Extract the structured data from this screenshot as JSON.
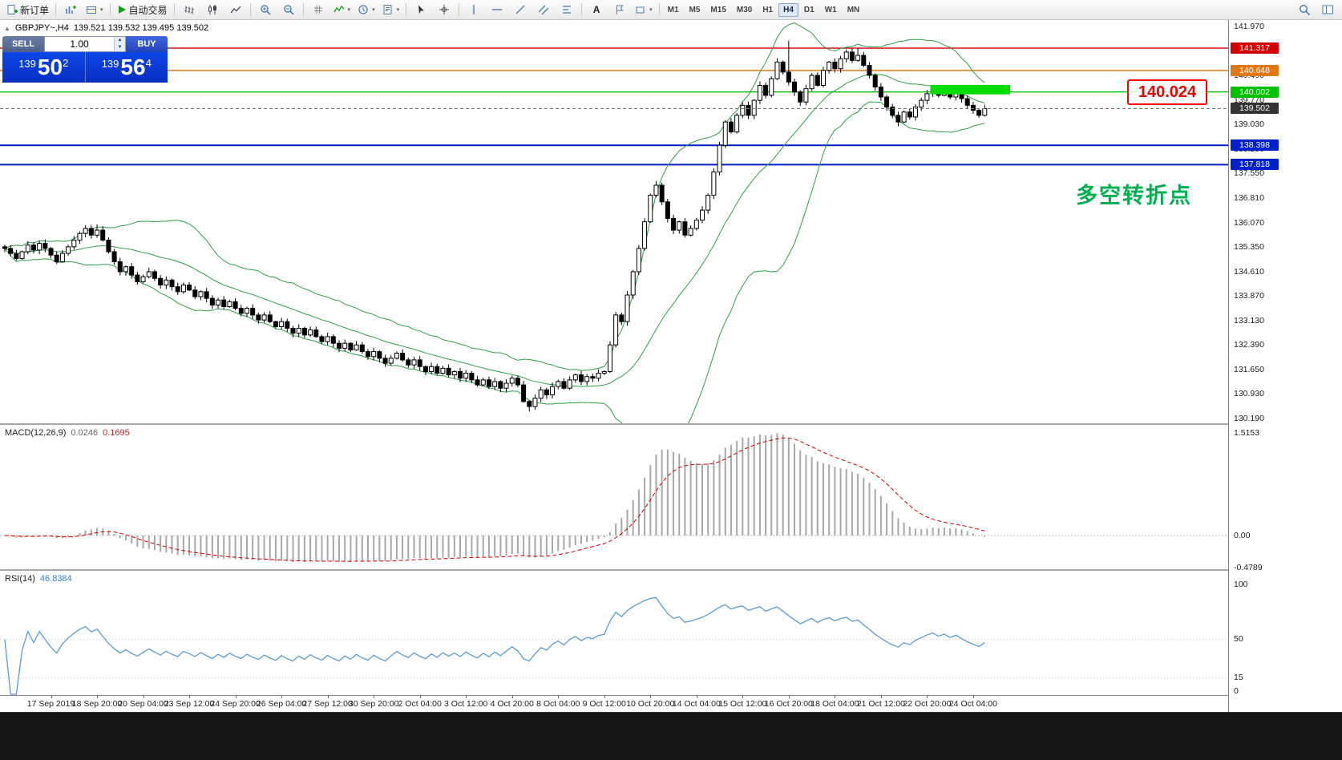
{
  "toolbar": {
    "new_order_label": "新订单",
    "autotrading_label": "自动交易",
    "text_tool_label": "A",
    "timeframes": [
      "M1",
      "M5",
      "M15",
      "M30",
      "H1",
      "H4",
      "D1",
      "W1",
      "MN"
    ],
    "active_timeframe": "H4"
  },
  "symbol_header": {
    "collapse_icon": "▲",
    "symbol": "GBPJPY~,H4",
    "quotes": "139.521 139.532 139.495 139.502"
  },
  "one_click": {
    "sell_label": "SELL",
    "buy_label": "BUY",
    "volume": "1.00",
    "sell_price_main": "139",
    "sell_price_pips": "50",
    "sell_price_frac": "2",
    "buy_price_main": "139",
    "buy_price_pips": "56",
    "buy_price_frac": "4"
  },
  "annotations": {
    "price_box": "140.024",
    "turning_point": "多空转折点"
  },
  "levels": [
    {
      "price": 141.317,
      "label": "141.317",
      "color": "#d20000",
      "width": 1.4
    },
    {
      "price": 140.648,
      "label": "140.648",
      "color": "#e07818",
      "width": 1.4
    },
    {
      "price": 140.002,
      "label": "140.002",
      "color": "#00c000",
      "width": 1.4
    },
    {
      "price": 138.398,
      "label": "138.398",
      "color": "#0020cc",
      "width": 2
    },
    {
      "price": 137.818,
      "label": "137.818",
      "color": "#0020cc",
      "width": 2
    }
  ],
  "current_price": {
    "value": 139.502,
    "label": "139.502",
    "badge_color": "#333333"
  },
  "y_axis": {
    "labels": [
      "141.970",
      "141.230",
      "140.490",
      "139.770",
      "139.030",
      "138.290",
      "137.550",
      "136.810",
      "136.070",
      "135.350",
      "134.610",
      "133.870",
      "133.130",
      "132.390",
      "131.650",
      "130.930",
      "130.190"
    ]
  },
  "macd": {
    "title": "MACD(12,26,9)",
    "value_main": "0.0246",
    "value_signal": "0.1695",
    "scale": [
      "1.5153",
      "0.00",
      "-0.4789"
    ],
    "levels_y_page": [
      540,
      668,
      708
    ]
  },
  "rsi": {
    "title": "RSI(14)",
    "value": "46.8384",
    "scale": [
      "100",
      "50",
      "15",
      "0"
    ],
    "scale_y_page": [
      729,
      797,
      845,
      862
    ],
    "levels": [
      50,
      15
    ]
  },
  "colors": {
    "bollinger": "#2f9e46",
    "candle_up": "#ffffff",
    "candle_down": "#000000",
    "candle_border": "#000000",
    "macd_hist": "#a8a8a8",
    "macd_signal": "#d00000",
    "rsi_line": "#5b9bd5",
    "highlight": "#00dd00",
    "current_line": "#777777"
  },
  "chart_data": {
    "type": "candlestick",
    "symbol": "GBPJPY~",
    "timeframe": "H4",
    "title": "GBPJPY~,H4",
    "y_range": [
      130.19,
      141.97
    ],
    "first_open": 135.35,
    "bollinger_period": 20,
    "closes": [
      135.3,
      135.15,
      135.0,
      135.2,
      135.4,
      135.25,
      135.45,
      135.3,
      135.1,
      134.9,
      135.15,
      135.35,
      135.55,
      135.75,
      135.9,
      135.7,
      135.85,
      135.55,
      135.2,
      134.9,
      134.6,
      134.75,
      134.5,
      134.3,
      134.45,
      134.6,
      134.4,
      134.2,
      134.35,
      134.15,
      134.0,
      134.2,
      134.05,
      133.85,
      134.0,
      133.8,
      133.6,
      133.75,
      133.55,
      133.7,
      133.5,
      133.35,
      133.5,
      133.3,
      133.15,
      133.3,
      133.1,
      132.95,
      133.1,
      132.9,
      132.75,
      132.9,
      132.7,
      132.85,
      132.65,
      132.5,
      132.65,
      132.45,
      132.3,
      132.45,
      132.25,
      132.4,
      132.2,
      132.05,
      132.2,
      132.0,
      131.85,
      132.0,
      132.15,
      131.95,
      131.8,
      131.95,
      131.75,
      131.6,
      131.75,
      131.55,
      131.7,
      131.5,
      131.6,
      131.4,
      131.55,
      131.35,
      131.2,
      131.35,
      131.15,
      131.3,
      131.1,
      131.25,
      131.4,
      131.2,
      130.7,
      130.55,
      130.8,
      131.05,
      130.9,
      131.15,
      131.3,
      131.1,
      131.35,
      131.5,
      131.3,
      131.45,
      131.4,
      131.55,
      131.6,
      132.4,
      133.3,
      133.1,
      133.9,
      134.6,
      135.3,
      136.1,
      136.9,
      137.2,
      136.7,
      136.2,
      135.85,
      136.1,
      135.7,
      135.9,
      136.15,
      136.45,
      136.9,
      137.6,
      138.4,
      139.1,
      138.8,
      139.3,
      139.6,
      139.3,
      139.75,
      140.2,
      139.9,
      140.4,
      140.9,
      140.6,
      140.3,
      140.0,
      139.7,
      140.1,
      140.5,
      140.2,
      140.65,
      140.9,
      140.7,
      141.0,
      141.2,
      140.95,
      141.1,
      140.8,
      140.5,
      140.15,
      139.85,
      139.55,
      139.3,
      139.1,
      139.4,
      139.25,
      139.55,
      139.75,
      139.95,
      140.1,
      139.9,
      140.05,
      139.85,
      140.0,
      139.8,
      139.6,
      139.45,
      139.3,
      139.502
    ],
    "wick_overrides_high": {
      "16": 136.02,
      "136": 141.55,
      "148": 141.33
    },
    "wick_overrides_low": {
      "91": 130.4,
      "155": 138.97
    },
    "rectangle": {
      "start_index": 161,
      "end_index": 174,
      "price_top": 140.21,
      "price_bottom": 139.93
    },
    "x_labels": [
      "17 Sep 2019",
      "18 Sep 20:00",
      "20 Sep 04:00",
      "23 Sep 12:00",
      "24 Sep 20:00",
      "26 Sep 04:00",
      "27 Sep 12:00",
      "30 Sep 20:00",
      "2 Oct 04:00",
      "3 Oct 12:00",
      "4 Oct 20:00",
      "8 Oct 04:00",
      "9 Oct 12:00",
      "10 Oct 20:00",
      "14 Oct 04:00",
      "15 Oct 12:00",
      "16 Oct 20:00",
      "18 Oct 04:00",
      "21 Oct 12:00",
      "22 Oct 20:00",
      "24 Oct 04:00"
    ],
    "first_label_index": 8,
    "label_every": 8,
    "indicators": [
      {
        "name": "MACD",
        "fast": 12,
        "slow": 26,
        "signal": 9,
        "current_main": 0.0246,
        "current_signal": 0.1695,
        "scale_max": 1.5153,
        "scale_min": -0.4789
      },
      {
        "name": "RSI",
        "period": 14,
        "current": 46.8384,
        "scale": [
          0,
          100
        ]
      }
    ]
  }
}
